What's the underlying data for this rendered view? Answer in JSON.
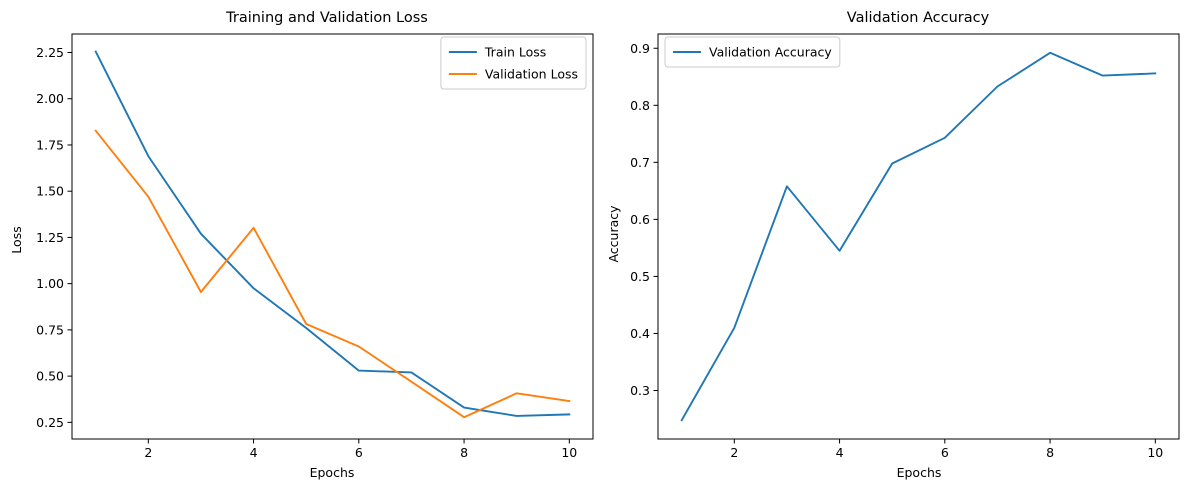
{
  "chart_data": [
    {
      "type": "line",
      "title": "Training and Validation Loss",
      "xlabel": "Epochs",
      "ylabel": "Loss",
      "x": [
        1,
        2,
        3,
        4,
        5,
        6,
        7,
        8,
        9,
        10
      ],
      "series": [
        {
          "name": "Train Loss",
          "color": "#1f77b4",
          "values": [
            2.255,
            1.69,
            1.27,
            0.975,
            0.76,
            0.53,
            0.52,
            0.33,
            0.285,
            0.293
          ]
        },
        {
          "name": "Validation Loss",
          "color": "#ff7f0e",
          "values": [
            1.827,
            1.47,
            0.955,
            1.302,
            0.782,
            0.66,
            0.47,
            0.278,
            0.407,
            0.365
          ]
        }
      ],
      "xlim": [
        0.55,
        10.45
      ],
      "ylim": [
        0.16,
        2.35
      ],
      "xticks": [
        2,
        4,
        6,
        8,
        10
      ],
      "yticks": [
        0.25,
        0.5,
        0.75,
        1.0,
        1.25,
        1.5,
        1.75,
        2.0,
        2.25
      ],
      "ytick_labels": [
        "0.25",
        "0.50",
        "0.75",
        "1.00",
        "1.25",
        "1.50",
        "1.75",
        "2.00",
        "2.25"
      ],
      "grid": false,
      "legend": "upper right"
    },
    {
      "type": "line",
      "title": "Validation Accuracy",
      "xlabel": "Epochs",
      "ylabel": "Accuracy",
      "x": [
        1,
        2,
        3,
        4,
        5,
        6,
        7,
        8,
        9,
        10
      ],
      "series": [
        {
          "name": "Validation Accuracy",
          "color": "#1f77b4",
          "values": [
            0.248,
            0.41,
            0.658,
            0.545,
            0.698,
            0.743,
            0.833,
            0.892,
            0.852,
            0.856
          ]
        }
      ],
      "xlim": [
        0.55,
        10.45
      ],
      "ylim": [
        0.215,
        0.925
      ],
      "xticks": [
        2,
        4,
        6,
        8,
        10
      ],
      "yticks": [
        0.3,
        0.4,
        0.5,
        0.6,
        0.7,
        0.8,
        0.9
      ],
      "ytick_labels": [
        "0.3",
        "0.4",
        "0.5",
        "0.6",
        "0.7",
        "0.8",
        "0.9"
      ],
      "grid": false,
      "legend": "upper left"
    }
  ]
}
